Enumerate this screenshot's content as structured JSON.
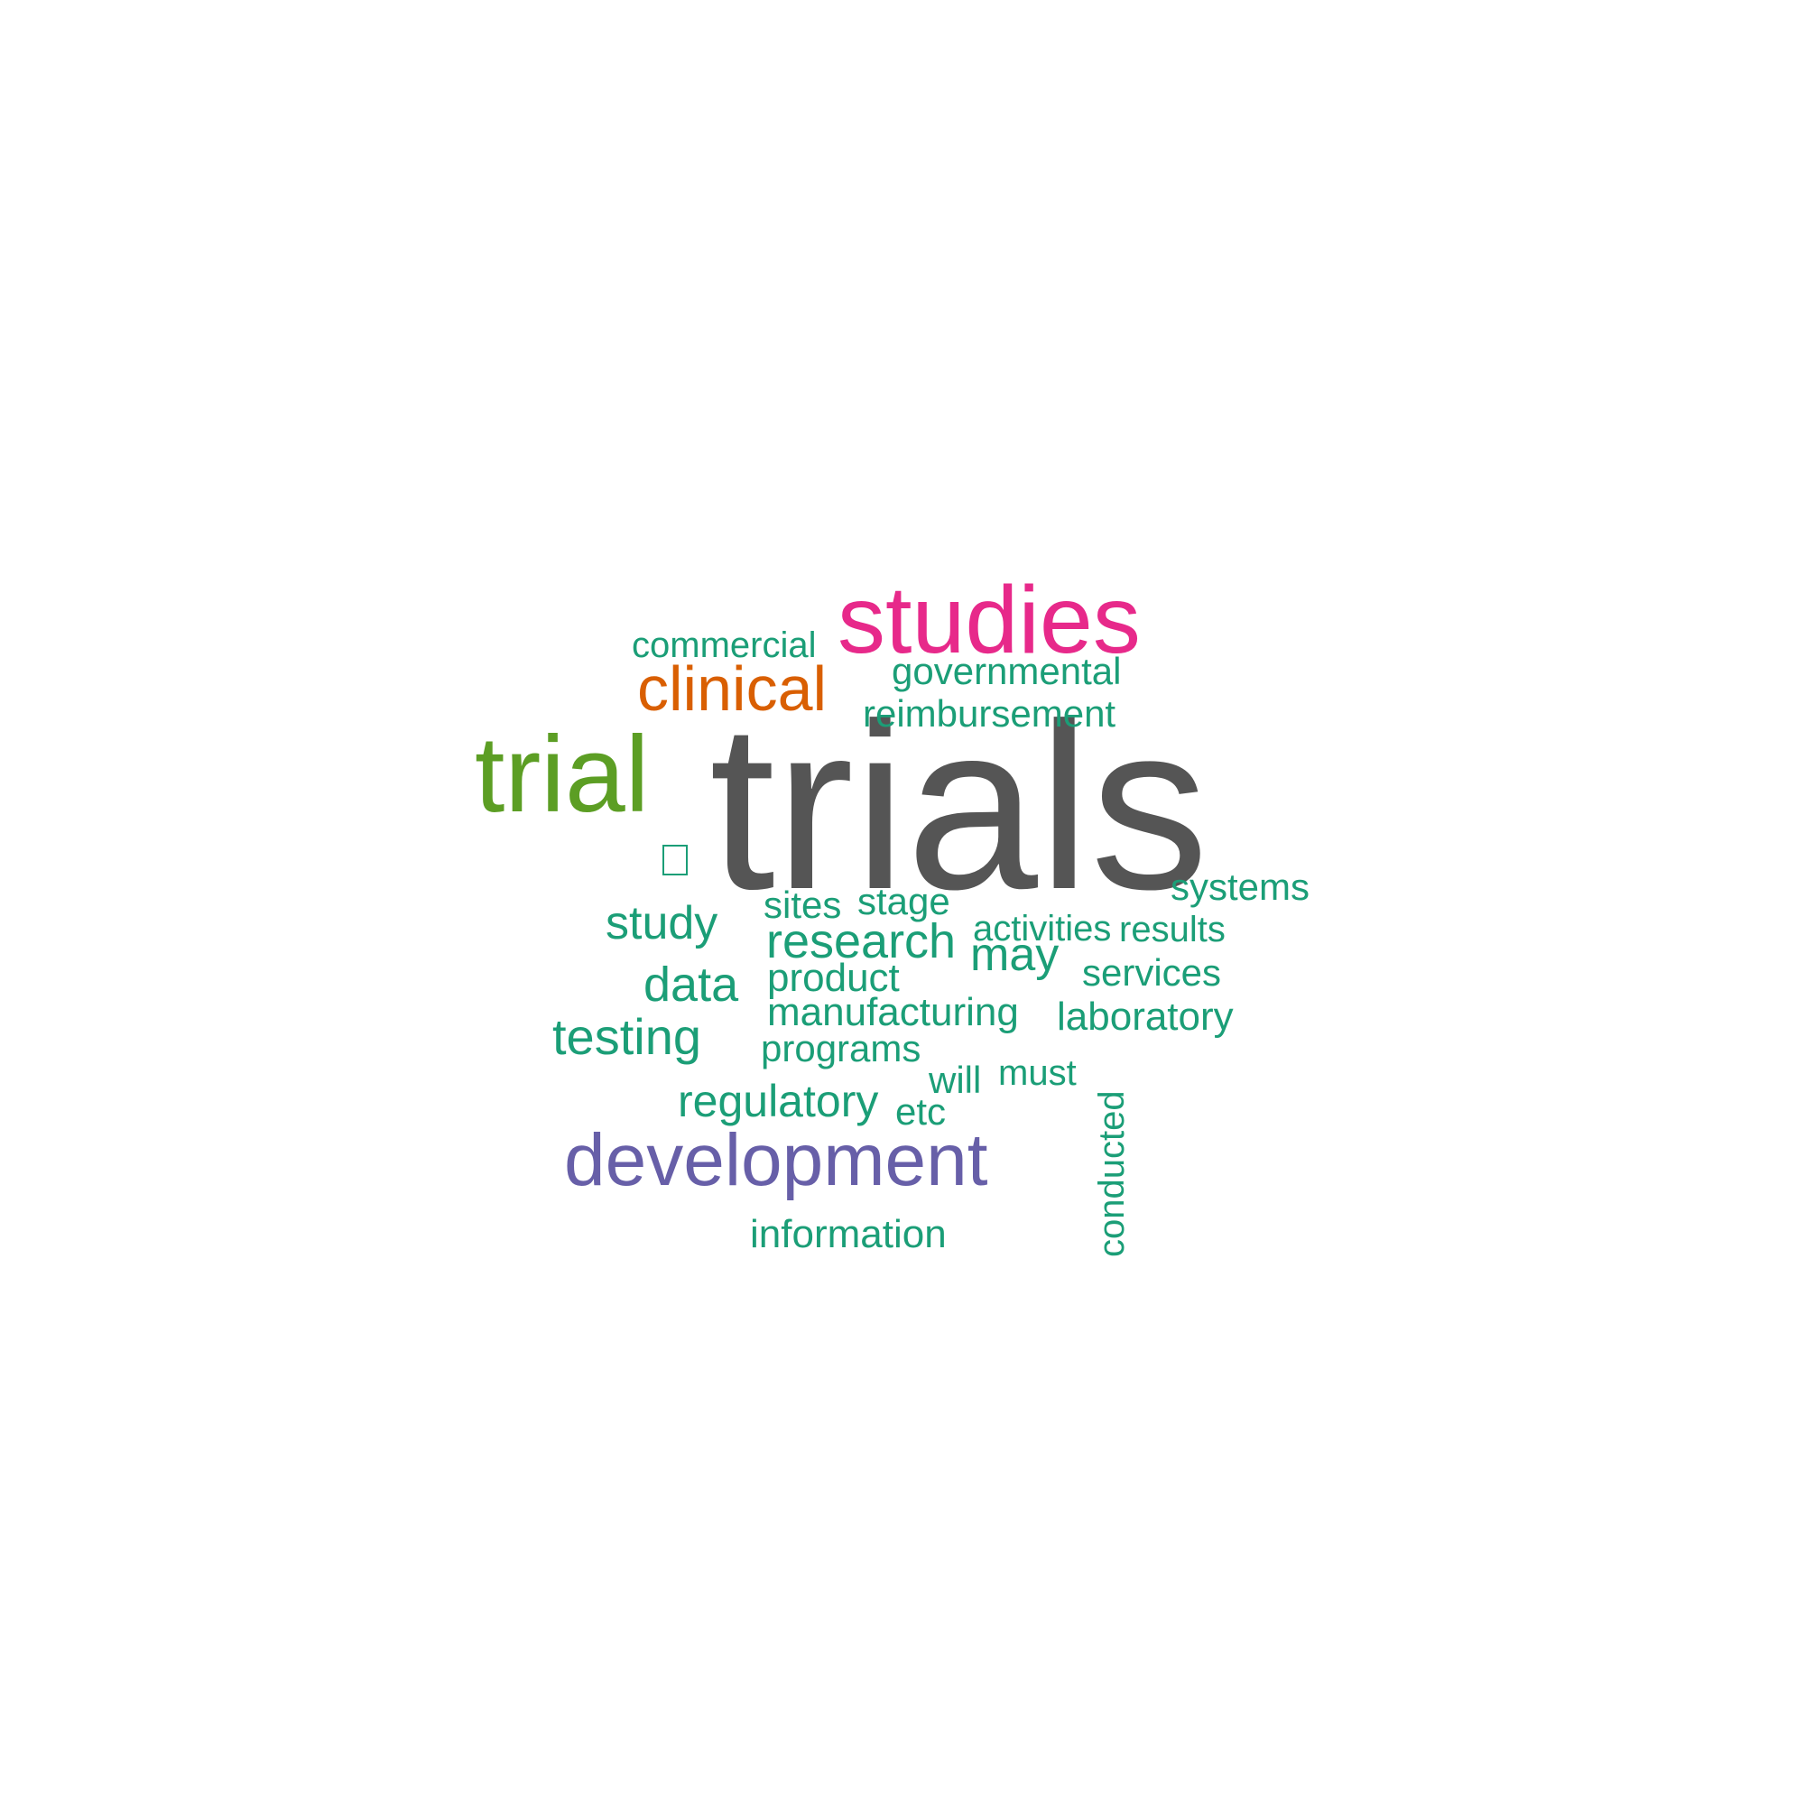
{
  "palette": {
    "trials": "#555555",
    "studies": "#e7298a",
    "trial": "#5c9e24",
    "clinical": "#d95f02",
    "development": "#675fa8",
    "others": "#1b9e77"
  },
  "words": [
    {
      "key": "trials",
      "text": "trials",
      "color_key": "trials"
    },
    {
      "key": "studies",
      "text": "studies",
      "color_key": "studies"
    },
    {
      "key": "trial",
      "text": "trial",
      "color_key": "trial"
    },
    {
      "key": "clinical",
      "text": "clinical",
      "color_key": "clinical"
    },
    {
      "key": "development",
      "text": "development",
      "color_key": "development"
    },
    {
      "key": "commercial",
      "text": "commercial",
      "color_key": "others"
    },
    {
      "key": "governmental",
      "text": "governmental",
      "color_key": "others"
    },
    {
      "key": "reimbursement",
      "text": "reimbursement",
      "color_key": "others"
    },
    {
      "key": "systems",
      "text": "systems",
      "color_key": "others"
    },
    {
      "key": "study",
      "text": "study",
      "color_key": "others"
    },
    {
      "key": "sites",
      "text": "sites",
      "color_key": "others"
    },
    {
      "key": "stage",
      "text": "stage",
      "color_key": "others"
    },
    {
      "key": "activities",
      "text": "activities",
      "color_key": "others"
    },
    {
      "key": "results",
      "text": "results",
      "color_key": "others"
    },
    {
      "key": "research",
      "text": "research",
      "color_key": "others"
    },
    {
      "key": "may",
      "text": "may",
      "color_key": "others"
    },
    {
      "key": "services",
      "text": "services",
      "color_key": "others"
    },
    {
      "key": "data",
      "text": "data",
      "color_key": "others"
    },
    {
      "key": "product",
      "text": "product",
      "color_key": "others"
    },
    {
      "key": "manufacturing",
      "text": "manufacturing",
      "color_key": "others"
    },
    {
      "key": "laboratory",
      "text": "laboratory",
      "color_key": "others"
    },
    {
      "key": "testing",
      "text": "testing",
      "color_key": "others"
    },
    {
      "key": "programs",
      "text": "programs",
      "color_key": "others"
    },
    {
      "key": "will",
      "text": "will",
      "color_key": "others"
    },
    {
      "key": "must",
      "text": "must",
      "color_key": "others"
    },
    {
      "key": "regulatory",
      "text": "regulatory",
      "color_key": "others"
    },
    {
      "key": "etc",
      "text": "etc",
      "color_key": "others"
    },
    {
      "key": "information",
      "text": "information",
      "color_key": "others"
    },
    {
      "key": "conducted",
      "text": "conducted",
      "color_key": "others"
    }
  ]
}
